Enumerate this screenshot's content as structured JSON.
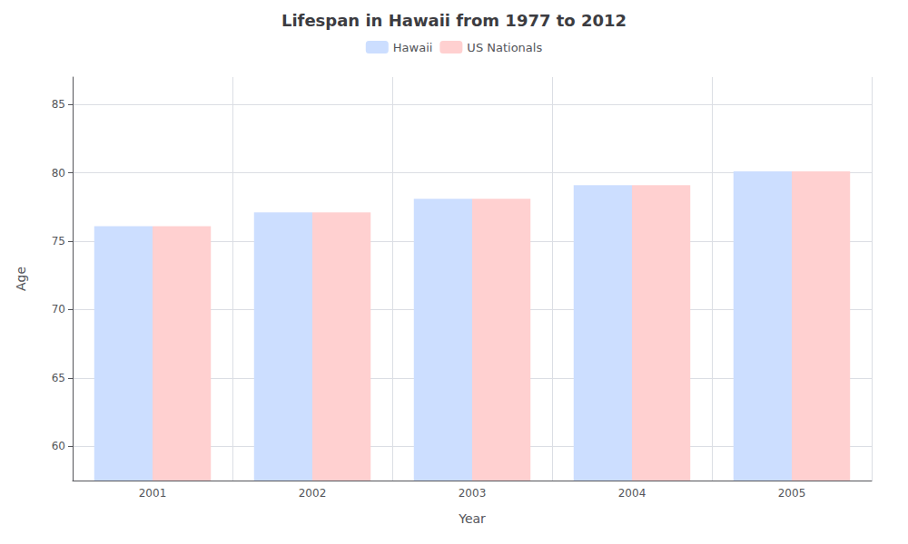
{
  "chart_data": {
    "type": "bar",
    "title": "Lifespan in Hawaii from 1977 to 2012",
    "xlabel": "Year",
    "ylabel": "Age",
    "categories": [
      "2001",
      "2002",
      "2003",
      "2004",
      "2005"
    ],
    "series": [
      {
        "name": "Hawaii",
        "color": "#ccdeff",
        "values": [
          76.1,
          77.1,
          78.1,
          79.1,
          80.1
        ]
      },
      {
        "name": "US Nationals",
        "color": "#ffd0d0",
        "values": [
          76.1,
          77.1,
          78.1,
          79.1,
          80.1
        ]
      }
    ],
    "ylim": [
      57.5,
      87
    ],
    "yticks": [
      60,
      65,
      70,
      75,
      80,
      85
    ],
    "grid": true,
    "legend": "top"
  }
}
